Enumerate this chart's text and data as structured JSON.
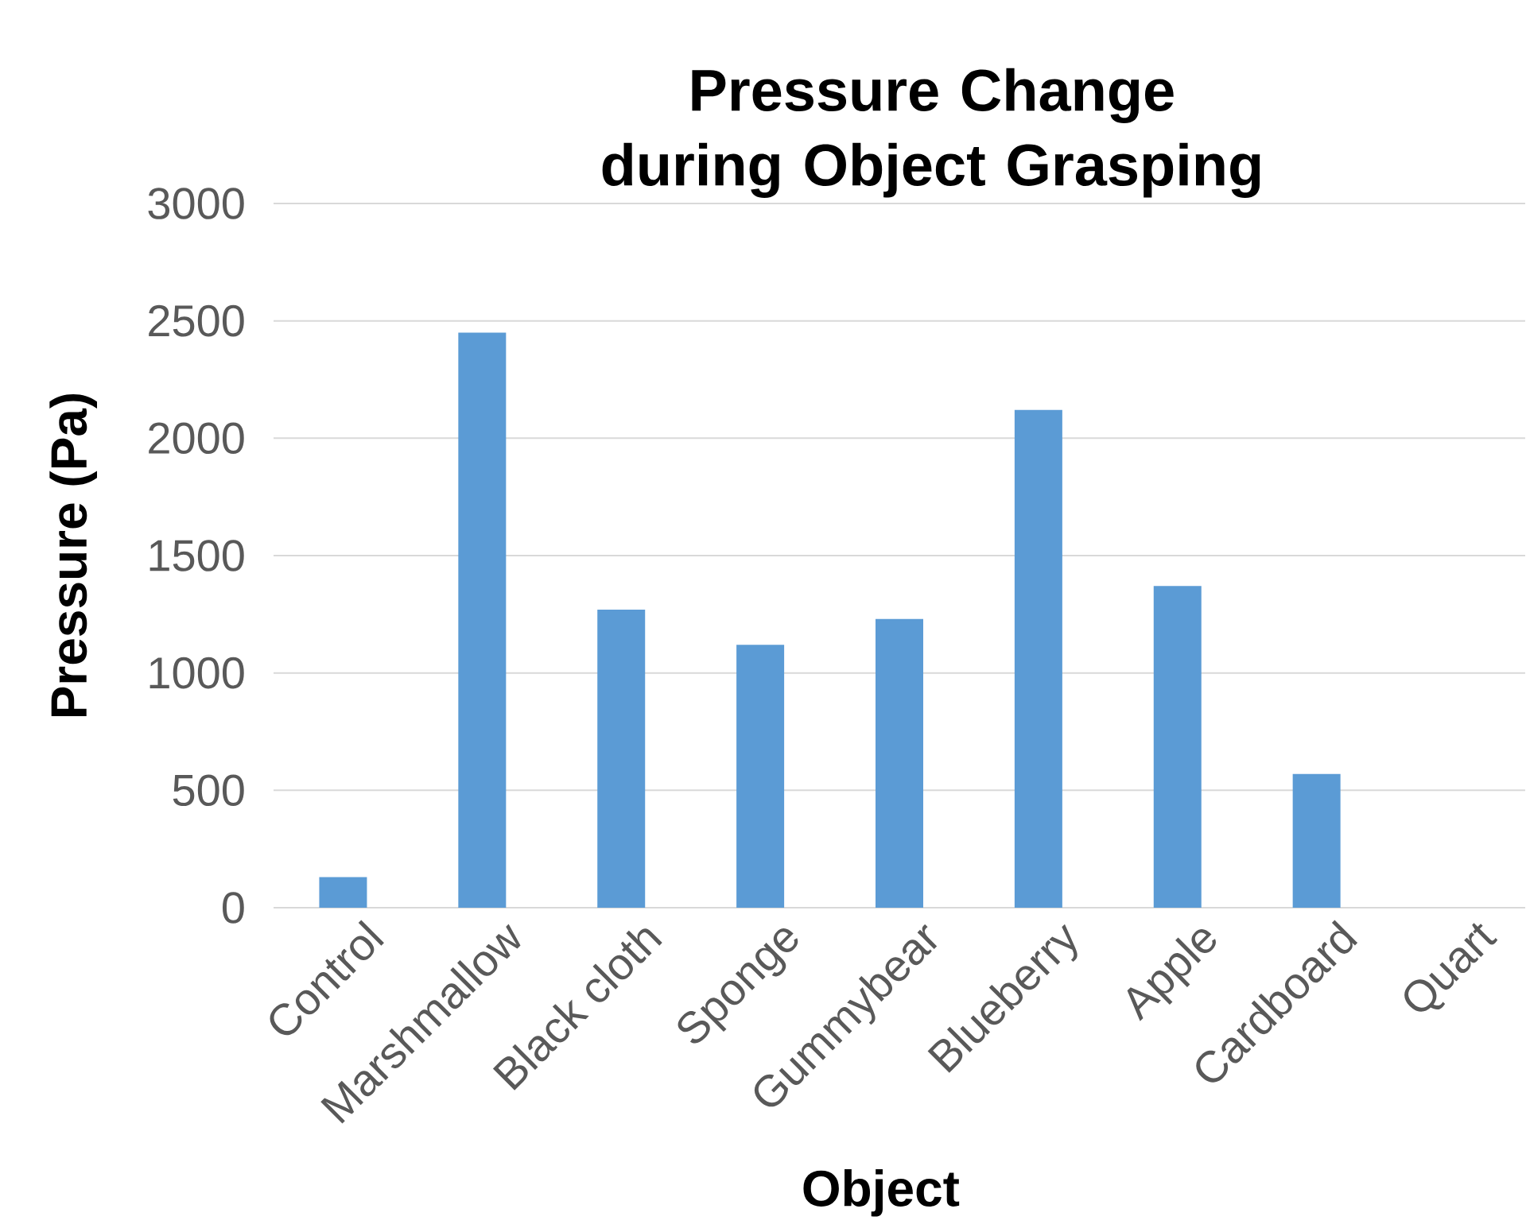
{
  "chart_data": {
    "type": "bar",
    "title": "Pressure Change during Object Grasping",
    "xlabel": "Object",
    "ylabel": "Pressure (Pa)",
    "categories": [
      "Control",
      "Marshmallow",
      "Black cloth",
      "Sponge",
      "Gummybear",
      "Blueberry",
      "Apple",
      "Cardboard",
      "Quart"
    ],
    "values": [
      130,
      2450,
      1270,
      1120,
      1230,
      2120,
      1370,
      570,
      null
    ],
    "color": "#5b9bd5",
    "ylim": [
      0,
      3000
    ],
    "yticks": [
      0,
      500,
      1000,
      1500,
      2000,
      2500,
      3000
    ],
    "grid": "y"
  }
}
